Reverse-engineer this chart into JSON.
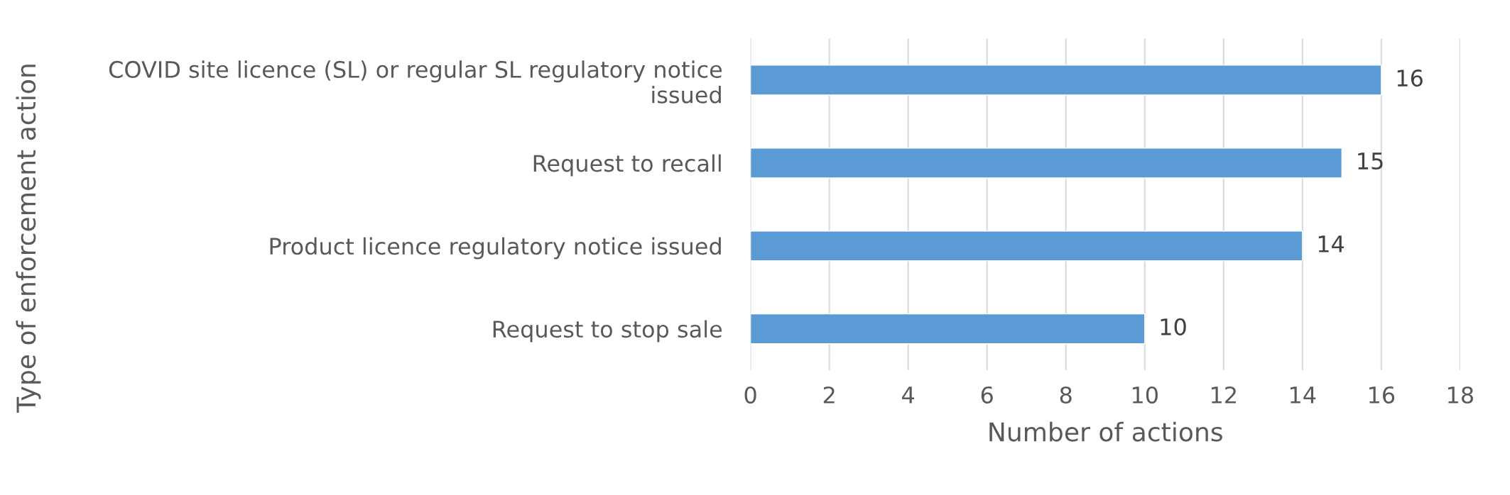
{
  "chart_data": {
    "type": "bar",
    "orientation": "horizontal",
    "categories": [
      "COVID site licence (SL) or regular SL regulatory notice\nissued",
      "Request to recall",
      "Product licence regulatory notice issued",
      "Request to stop sale"
    ],
    "values": [
      16,
      15,
      14,
      10
    ],
    "color": "#5b9bd5",
    "xlabel": "Number of actions",
    "ylabel": "Type of enforcement action",
    "xlim": [
      0,
      18
    ],
    "xticks": [
      0,
      2,
      4,
      6,
      8,
      10,
      12,
      14,
      16,
      18
    ],
    "grid": "x",
    "data_labels": true,
    "legend": false
  }
}
